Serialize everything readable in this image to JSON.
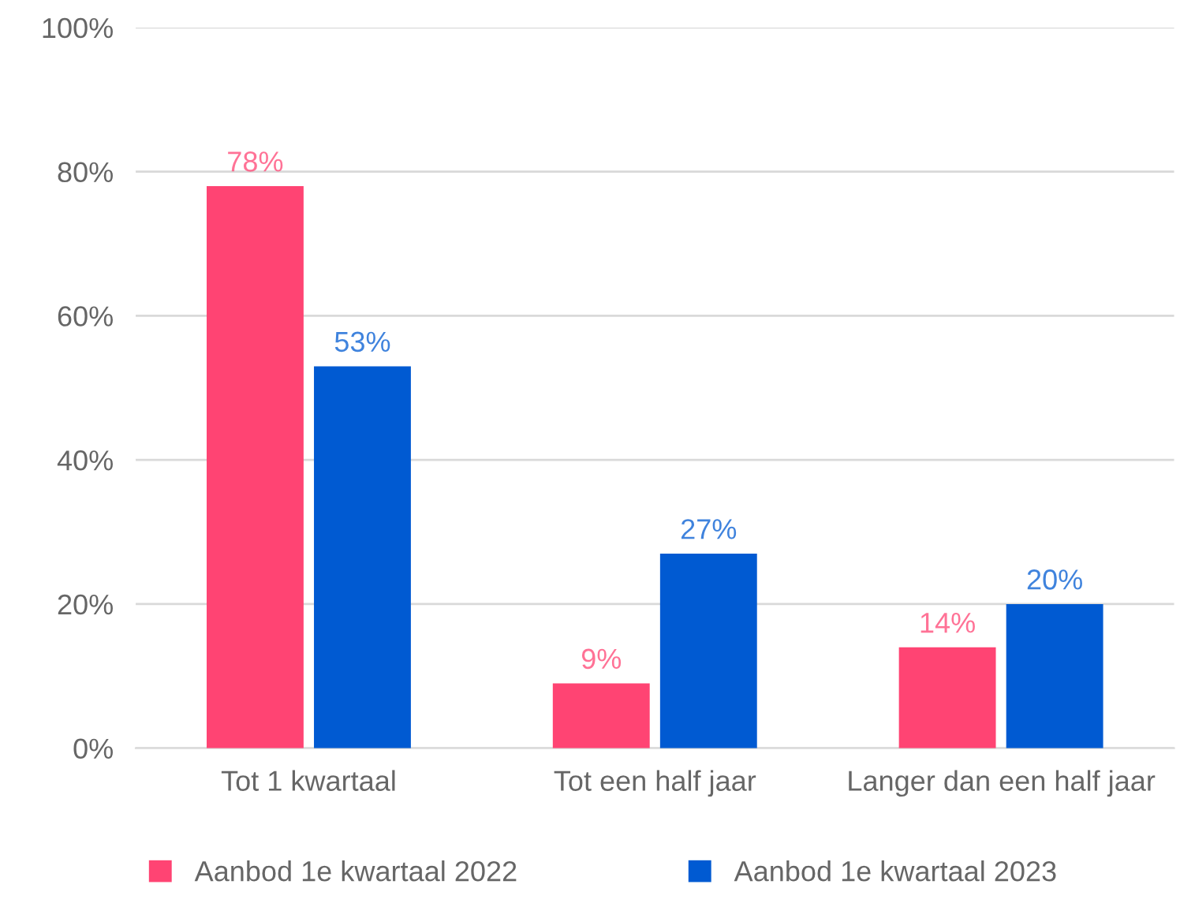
{
  "chart_data": {
    "type": "bar",
    "categories": [
      "Tot 1 kwartaal",
      "Tot een half jaar",
      "Langer dan een half jaar"
    ],
    "series": [
      {
        "name": "Aanbod 1e kwartaal 2022",
        "color": "#ff4473",
        "values": [
          78,
          9,
          14
        ],
        "value_labels": [
          "78%",
          "9%",
          "14%"
        ]
      },
      {
        "name": "Aanbod 1e kwartaal 2023",
        "color": "#005ad2",
        "values": [
          53,
          27,
          20
        ],
        "value_labels": [
          "53%",
          "27%",
          "20%"
        ]
      }
    ],
    "ylim": [
      0,
      100
    ],
    "yticks": [
      {
        "value": 0,
        "label": "0%"
      },
      {
        "value": 20,
        "label": "20%"
      },
      {
        "value": 40,
        "label": "40%"
      },
      {
        "value": 60,
        "label": "60%"
      },
      {
        "value": 80,
        "label": "80%"
      },
      {
        "value": 100,
        "label": "100%"
      }
    ],
    "grid": "y",
    "legend": "bottom"
  }
}
